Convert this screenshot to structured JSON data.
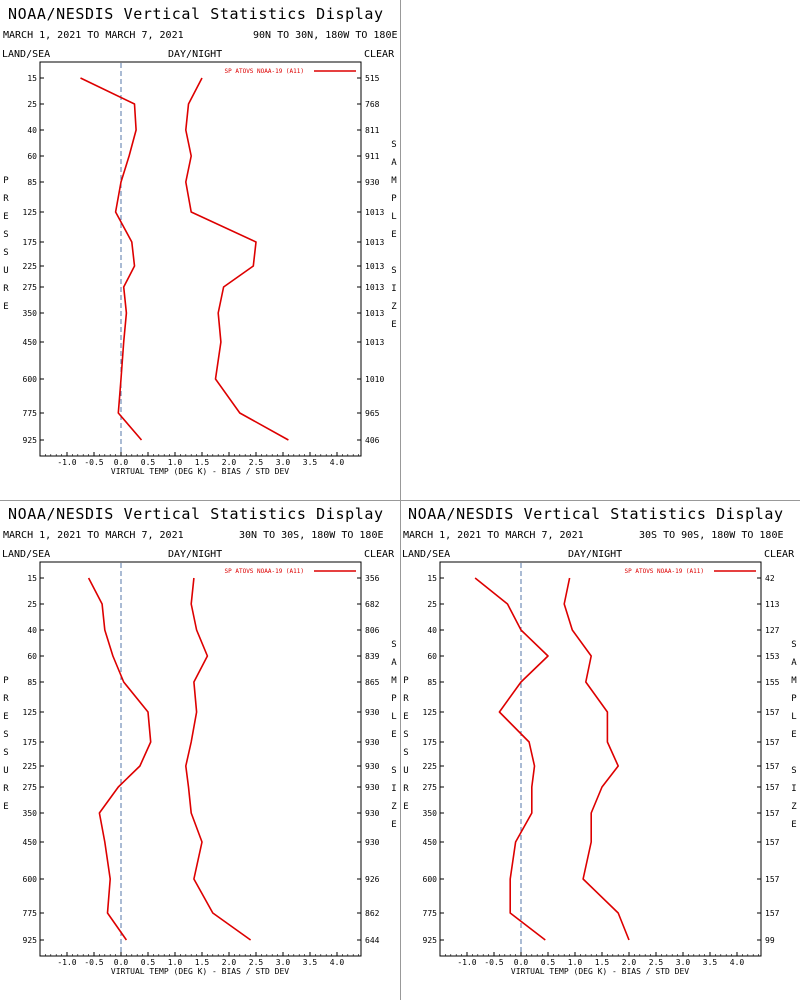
{
  "panels": [
    {
      "title": "NOAA/NESDIS Vertical Statistics Display",
      "date_range": "MARCH 1, 2021 TO MARCH 7, 2021",
      "region": "90N TO 30N, 180W TO 180E",
      "land_sea": "LAND/SEA",
      "day_night": "DAY/NIGHT",
      "clear": "CLEAR",
      "pressure_label": "PRESSURE",
      "sample_label": "SAMPLE",
      "size_label": "SIZE",
      "xlabel": "VIRTUAL TEMP (DEG K) - BIAS / STD DEV",
      "legend": "SP ATOVS NOAA-19 (A11)"
    },
    {
      "title": "NOAA/NESDIS Vertical Statistics Display",
      "date_range": "MARCH 1, 2021 TO MARCH 7, 2021",
      "region": "30N TO 30S, 180W TO 180E",
      "land_sea": "LAND/SEA",
      "day_night": "DAY/NIGHT",
      "clear": "CLEAR",
      "pressure_label": "PRESSURE",
      "sample_label": "SAMPLE",
      "size_label": "SIZE",
      "xlabel": "VIRTUAL TEMP (DEG K) - BIAS / STD DEV",
      "legend": "SP ATOVS NOAA-19 (A11)"
    },
    {
      "title": "NOAA/NESDIS Vertical Statistics Display",
      "date_range": "MARCH 1, 2021 TO MARCH 7, 2021",
      "region": "30S TO 90S, 180W TO 180E",
      "land_sea": "LAND/SEA",
      "day_night": "DAY/NIGHT",
      "clear": "CLEAR",
      "pressure_label": "PRESSURE",
      "sample_label": "SAMPLE",
      "size_label": "SIZE",
      "xlabel": "VIRTUAL TEMP (DEG K) - BIAS / STD DEV",
      "legend": "SP ATOVS NOAA-19 (A11)"
    }
  ],
  "chart_data": [
    {
      "type": "line",
      "xlabel": "VIRTUAL TEMP (DEG K) - BIAS / STD DEV",
      "ylabel": "PRESSURE",
      "xlim": [
        -1.5,
        4.5
      ],
      "x_ticks": [
        "-1.0",
        "-0.5",
        "0.0",
        "0.5",
        "1.0",
        "1.5",
        "2.0",
        "2.5",
        "3.0",
        "3.5",
        "4.0"
      ],
      "pressure_levels": [
        "15",
        "25",
        "40",
        "60",
        "85",
        "125",
        "175",
        "225",
        "275",
        "350",
        "450",
        "600",
        "775",
        "925"
      ],
      "sample_size": [
        "515",
        "768",
        "811",
        "911",
        "930",
        "1013",
        "1013",
        "1013",
        "1013",
        "1013",
        "1013",
        "1010",
        "965",
        "406"
      ],
      "line_color": "#dd0000",
      "reference_line_color": "#5577aa",
      "legend_position": "top-right",
      "series": [
        {
          "name": "SP ATOVS NOAA-19 (A11)",
          "values": [
            -0.75,
            0.25,
            0.28,
            0.15,
            0.0,
            -0.1,
            0.2,
            0.25,
            0.05,
            0.1,
            0.05,
            0.0,
            -0.05,
            0.38
          ]
        },
        {
          "values": [
            1.5,
            1.25,
            1.2,
            1.3,
            1.2,
            1.3,
            2.5,
            2.45,
            1.9,
            1.8,
            1.85,
            1.75,
            2.2,
            3.1
          ]
        }
      ]
    },
    {
      "type": "line",
      "xlabel": "VIRTUAL TEMP (DEG K) - BIAS / STD DEV",
      "ylabel": "PRESSURE",
      "xlim": [
        -1.5,
        4.5
      ],
      "x_ticks": [
        "-1.0",
        "-0.5",
        "0.0",
        "0.5",
        "1.0",
        "1.5",
        "2.0",
        "2.5",
        "3.0",
        "3.5",
        "4.0"
      ],
      "pressure_levels": [
        "15",
        "25",
        "40",
        "60",
        "85",
        "125",
        "175",
        "225",
        "275",
        "350",
        "450",
        "600",
        "775",
        "925"
      ],
      "sample_size": [
        "356",
        "682",
        "806",
        "839",
        "865",
        "930",
        "930",
        "930",
        "930",
        "930",
        "930",
        "926",
        "862",
        "644"
      ],
      "line_color": "#dd0000",
      "reference_line_color": "#5577aa",
      "legend_position": "top-right",
      "series": [
        {
          "name": "SP ATOVS NOAA-19 (A11)",
          "values": [
            -0.6,
            -0.35,
            -0.3,
            -0.15,
            0.05,
            0.5,
            0.55,
            0.35,
            -0.05,
            -0.4,
            -0.3,
            -0.2,
            -0.25,
            0.1
          ]
        },
        {
          "values": [
            1.35,
            1.3,
            1.4,
            1.6,
            1.35,
            1.4,
            1.3,
            1.2,
            1.25,
            1.3,
            1.5,
            1.35,
            1.7,
            2.4
          ]
        }
      ]
    },
    {
      "type": "line",
      "xlabel": "VIRTUAL TEMP (DEG K) - BIAS / STD DEV",
      "ylabel": "PRESSURE",
      "xlim": [
        -1.5,
        4.5
      ],
      "x_ticks": [
        "-1.0",
        "-0.5",
        "0.0",
        "0.5",
        "1.0",
        "1.5",
        "2.0",
        "2.5",
        "3.0",
        "3.5",
        "4.0"
      ],
      "pressure_levels": [
        "15",
        "25",
        "40",
        "60",
        "85",
        "125",
        "175",
        "225",
        "275",
        "350",
        "450",
        "600",
        "775",
        "925"
      ],
      "sample_size": [
        "42",
        "113",
        "127",
        "153",
        "155",
        "157",
        "157",
        "157",
        "157",
        "157",
        "157",
        "157",
        "157",
        "99"
      ],
      "line_color": "#dd0000",
      "reference_line_color": "#5577aa",
      "legend_position": "top-right",
      "series": [
        {
          "name": "SP ATOVS NOAA-19 (A11)",
          "values": [
            -0.85,
            -0.25,
            0.0,
            0.5,
            0.0,
            -0.4,
            0.15,
            0.25,
            0.2,
            0.2,
            -0.1,
            -0.2,
            -0.2,
            0.45
          ]
        },
        {
          "values": [
            0.9,
            0.8,
            0.95,
            1.3,
            1.2,
            1.6,
            1.6,
            1.8,
            1.5,
            1.3,
            1.3,
            1.15,
            1.8,
            2.0
          ]
        }
      ]
    }
  ]
}
